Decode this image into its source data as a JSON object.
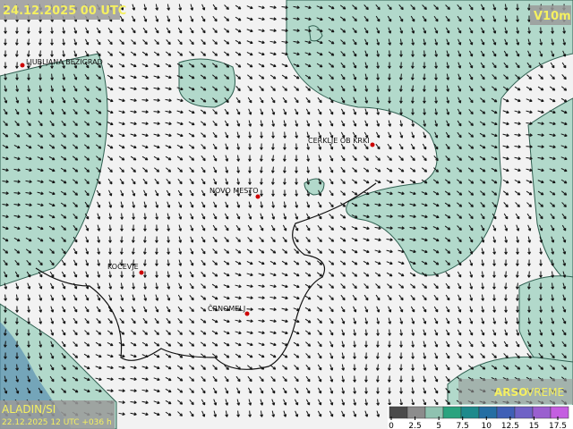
{
  "header": {
    "title": "24.12.2025 00 UTC",
    "field": "V10m"
  },
  "stations": [
    {
      "label": "LJUBLJANA BEŽIGRAD"
    },
    {
      "label": "CERKLJE OB KRKI"
    },
    {
      "label": "NOVO MESTO"
    },
    {
      "label": "KOČEVJE"
    },
    {
      "label": "ČRNOMELJ"
    }
  ],
  "footer": {
    "model": "ALADIN/SI",
    "run": "22.12.2025 12 UTC +036 h",
    "brand": "ARSO",
    "brand2": "VREME"
  },
  "legend": {
    "colors": [
      "#4a4a4a",
      "#8c8c8c",
      "#8fc2b0",
      "#2aa37f",
      "#1d8a8c",
      "#246ea3",
      "#3f5fb6",
      "#6f62c6",
      "#9a5fcf",
      "#c45ee0"
    ],
    "ticks": [
      0,
      2.5,
      5,
      7.5,
      10,
      12.5,
      15,
      17.5
    ]
  }
}
